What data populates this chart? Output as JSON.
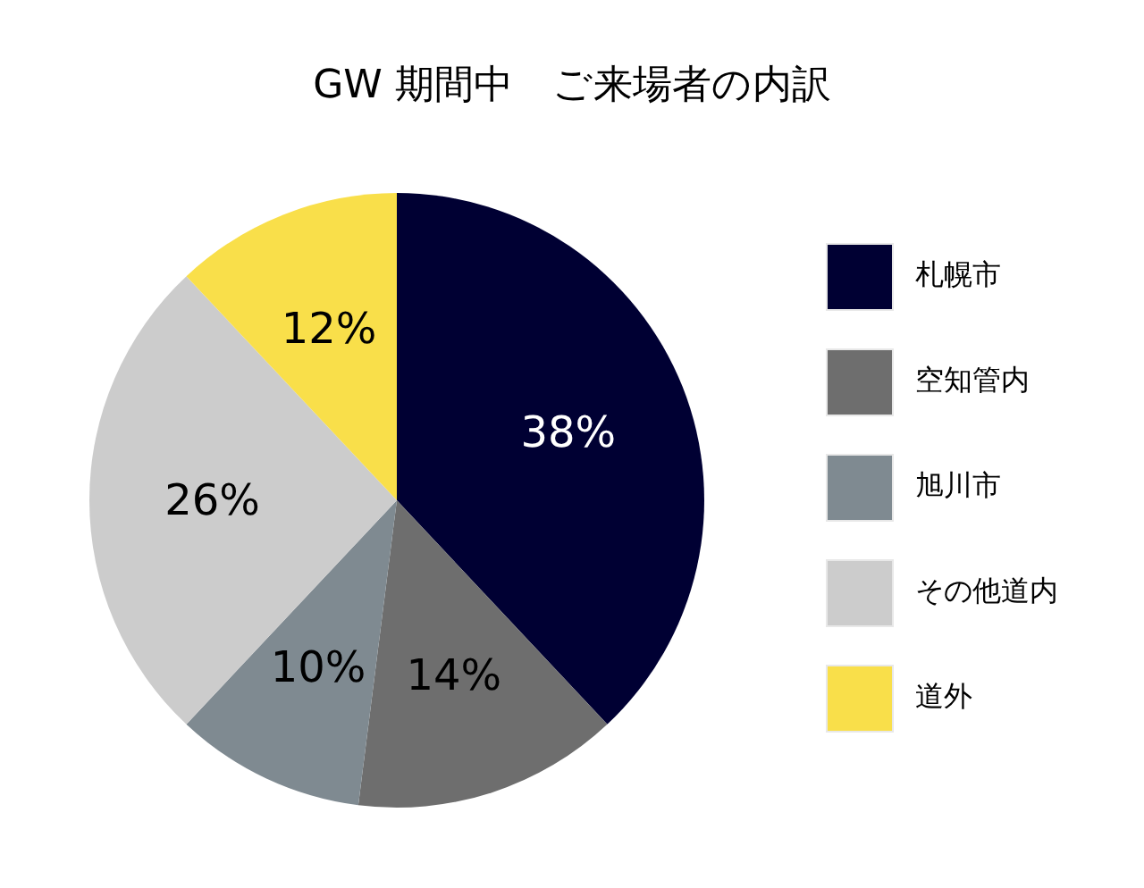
{
  "chart_data": {
    "type": "pie",
    "title": "GW 期間中　ご来場者の内訳",
    "categories": [
      "札幌市",
      "空知管内",
      "旭川市",
      "その他道内",
      "道外"
    ],
    "values": [
      38,
      14,
      10,
      26,
      12
    ],
    "colors": [
      "#000033",
      "#6e6e6e",
      "#7f8a91",
      "#cccccc",
      "#f9df4a"
    ],
    "value_labels": [
      "38%",
      "14%",
      "10%",
      "26%",
      "12%"
    ],
    "legend": "right"
  }
}
